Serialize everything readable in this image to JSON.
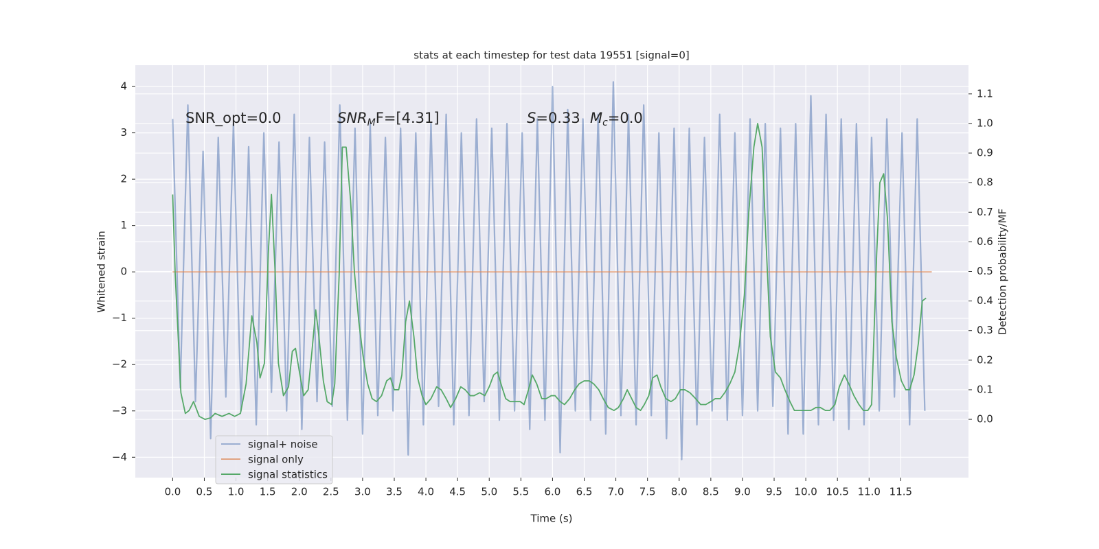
{
  "chart_data": {
    "type": "line",
    "title": "stats at each timestep for test data 19551 [signal=0]",
    "xlabel": "Time (s)",
    "ylabel": "Whitened strain",
    "y2label": "Detection probability/MF",
    "xlim": [
      -0.59,
      12.57
    ],
    "ylim": [
      -4.44,
      4.46
    ],
    "y2lim": [
      -0.197,
      1.197
    ],
    "xticks": [
      {
        "value": 0,
        "label": "0.0"
      },
      0.5,
      {
        "value": 1,
        "label": "1.0"
      },
      1.5,
      {
        "value": 2,
        "label": "2.0"
      },
      2.5,
      {
        "value": 3,
        "label": "3.0"
      },
      3.5,
      {
        "value": 4,
        "label": "4.0"
      },
      4.5,
      {
        "value": 5,
        "label": "5.0"
      },
      5.5,
      {
        "value": 6,
        "label": "6.0"
      },
      6.5,
      {
        "value": 7,
        "label": "7.0"
      },
      7.5,
      {
        "value": 8,
        "label": "8.0"
      },
      8.5,
      {
        "value": 9,
        "label": "9.0"
      },
      9.5,
      {
        "value": 10,
        "label": "10.0"
      },
      10.5,
      {
        "value": 11,
        "label": "11.0"
      },
      11.5
    ],
    "yticks": [
      {
        "value": -4,
        "label": "−4"
      },
      {
        "value": -3,
        "label": "−3"
      },
      {
        "value": -2,
        "label": "−2"
      },
      {
        "value": -1,
        "label": "−1"
      },
      0,
      1,
      2,
      3,
      4
    ],
    "y2ticks": [
      {
        "value": 0,
        "label": "0.0"
      },
      0.1,
      0.2,
      0.3,
      0.4,
      0.5,
      0.6,
      0.7,
      0.8,
      0.9,
      {
        "value": 1,
        "label": "1.0"
      },
      1.1
    ],
    "grid": true,
    "legend": "lower left",
    "annotations": [
      {
        "parts": [
          {
            "text": "SNR_opt=0.0",
            "style": "normal"
          }
        ]
      },
      {
        "parts": [
          {
            "text": "SNR",
            "style": "italic"
          },
          {
            "text": "M",
            "style": "sub"
          },
          {
            "text": "F=[4.31]",
            "style": "italic-head"
          }
        ]
      },
      {
        "parts": [
          {
            "text": "S",
            "style": "italic"
          },
          {
            "text": "=0.33",
            "style": "normal"
          }
        ]
      },
      {
        "parts": [
          {
            "text": "M",
            "style": "italic"
          },
          {
            "text": "c",
            "style": "sub"
          },
          {
            "text": "=0.0",
            "style": "normal"
          }
        ]
      }
    ],
    "series": [
      {
        "name": "signal+ noise",
        "color": "#4c72b0",
        "opacity": 0.5,
        "x": [
          0,
          0.12,
          0.24,
          0.36,
          0.48,
          0.6,
          0.72,
          0.84,
          0.96,
          1.08,
          1.2,
          1.32,
          1.44,
          1.56,
          1.68,
          1.8,
          1.92,
          2.04,
          2.16,
          2.28,
          2.4,
          2.52,
          2.64,
          2.76,
          2.88,
          3.0,
          3.12,
          3.24,
          3.36,
          3.48,
          3.6,
          3.72,
          3.84,
          3.96,
          4.08,
          4.2,
          4.32,
          4.44,
          4.56,
          4.68,
          4.8,
          4.92,
          5.04,
          5.16,
          5.28,
          5.4,
          5.52,
          5.64,
          5.76,
          5.88,
          6.0,
          6.12,
          6.24,
          6.36,
          6.48,
          6.6,
          6.72,
          6.84,
          6.96,
          7.08,
          7.2,
          7.32,
          7.44,
          7.56,
          7.68,
          7.8,
          7.92,
          8.04,
          8.16,
          8.28,
          8.4,
          8.52,
          8.64,
          8.76,
          8.88,
          9.0,
          9.12,
          9.24,
          9.36,
          9.48,
          9.6,
          9.72,
          9.84,
          9.96,
          10.08,
          10.2,
          10.32,
          10.44,
          10.56,
          10.68,
          10.8,
          10.92,
          11.04,
          11.16,
          11.28,
          11.4,
          11.52,
          11.64,
          11.76,
          11.88
        ],
        "values": [
          3.3,
          -2.5,
          3.6,
          -2.8,
          2.6,
          -3.6,
          2.9,
          -2.7,
          3.2,
          -3.0,
          2.7,
          -3.3,
          3.0,
          -2.6,
          2.8,
          -3.0,
          3.4,
          -3.4,
          2.9,
          -2.8,
          2.8,
          -2.9,
          3.6,
          -3.2,
          3.1,
          -3.5,
          3.2,
          -3.1,
          2.9,
          -3.0,
          3.1,
          -3.95,
          3.0,
          -3.3,
          3.2,
          -2.9,
          3.4,
          -3.3,
          3.0,
          -3.1,
          3.3,
          -2.8,
          3.1,
          -3.2,
          3.2,
          -3.0,
          3.0,
          -3.4,
          3.3,
          -3.2,
          4.0,
          -3.9,
          3.5,
          -3.0,
          3.3,
          -3.2,
          3.4,
          -3.5,
          4.1,
          -3.1,
          3.4,
          -3.3,
          3.6,
          -3.1,
          3.0,
          -3.6,
          3.1,
          -4.05,
          3.1,
          -3.3,
          2.9,
          -3.0,
          3.4,
          -3.2,
          3.0,
          -3.1,
          3.3,
          -3.0,
          3.2,
          -2.9,
          3.1,
          -3.5,
          3.2,
          -3.5,
          3.8,
          -3.3,
          3.4,
          -3.2,
          3.3,
          -3.4,
          3.2,
          -3.3,
          2.9,
          -3.0,
          3.3,
          -2.7,
          3.0,
          -3.3,
          3.3,
          -3.0
        ]
      },
      {
        "name": "signal only",
        "color": "#dd8452",
        "opacity": 0.7,
        "x": [
          0,
          11.99
        ],
        "values": [
          0,
          0
        ]
      },
      {
        "name": "signal statistics",
        "color": "#55a868",
        "opacity": 1,
        "axis": "y2",
        "x": [
          0,
          0.04,
          0.13,
          0.2,
          0.26,
          0.33,
          0.42,
          0.51,
          0.6,
          0.67,
          0.78,
          0.89,
          0.98,
          1.07,
          1.16,
          1.25,
          1.33,
          1.38,
          1.45,
          1.51,
          1.56,
          1.62,
          1.67,
          1.75,
          1.83,
          1.89,
          1.94,
          2.01,
          2.07,
          2.14,
          2.2,
          2.26,
          2.31,
          2.38,
          2.44,
          2.51,
          2.56,
          2.63,
          2.68,
          2.74,
          2.81,
          2.87,
          2.94,
          3.01,
          3.08,
          3.15,
          3.22,
          3.3,
          3.38,
          3.44,
          3.5,
          3.57,
          3.62,
          3.68,
          3.74,
          3.81,
          3.87,
          3.94,
          4.0,
          4.08,
          4.17,
          4.24,
          4.32,
          4.39,
          4.47,
          4.55,
          4.62,
          4.7,
          4.76,
          4.85,
          4.93,
          5.0,
          5.07,
          5.13,
          5.2,
          5.26,
          5.33,
          5.41,
          5.49,
          5.55,
          5.62,
          5.68,
          5.75,
          5.83,
          5.9,
          5.98,
          6.04,
          6.12,
          6.19,
          6.27,
          6.35,
          6.42,
          6.5,
          6.58,
          6.65,
          6.73,
          6.8,
          6.88,
          6.97,
          7.04,
          7.12,
          7.18,
          7.25,
          7.32,
          7.39,
          7.45,
          7.52,
          7.58,
          7.65,
          7.71,
          7.79,
          7.87,
          7.94,
          8.02,
          8.09,
          8.17,
          8.26,
          8.34,
          8.42,
          8.5,
          8.57,
          8.65,
          8.72,
          8.8,
          8.88,
          8.95,
          9.03,
          9.1,
          9.18,
          9.24,
          9.31,
          9.37,
          9.44,
          9.52,
          9.6,
          9.67,
          9.75,
          9.82,
          9.91,
          9.99,
          10.08,
          10.16,
          10.23,
          10.31,
          10.38,
          10.46,
          10.53,
          10.61,
          10.68,
          10.76,
          10.84,
          10.91,
          10.98,
          11.04,
          11.12,
          11.17,
          11.23,
          11.29,
          11.36,
          11.43,
          11.51,
          11.58,
          11.64,
          11.71,
          11.78,
          11.84,
          11.9
        ],
        "values": [
          0.76,
          0.49,
          0.09,
          0.02,
          0.03,
          0.06,
          0.01,
          0.0,
          0.005,
          0.02,
          0.01,
          0.02,
          0.01,
          0.02,
          0.12,
          0.35,
          0.26,
          0.14,
          0.19,
          0.56,
          0.76,
          0.49,
          0.19,
          0.08,
          0.11,
          0.23,
          0.24,
          0.15,
          0.08,
          0.1,
          0.23,
          0.37,
          0.28,
          0.13,
          0.06,
          0.05,
          0.12,
          0.49,
          0.92,
          0.92,
          0.74,
          0.5,
          0.33,
          0.21,
          0.12,
          0.07,
          0.06,
          0.08,
          0.13,
          0.14,
          0.1,
          0.1,
          0.15,
          0.33,
          0.4,
          0.28,
          0.14,
          0.08,
          0.05,
          0.07,
          0.11,
          0.1,
          0.07,
          0.04,
          0.07,
          0.11,
          0.1,
          0.08,
          0.08,
          0.09,
          0.08,
          0.11,
          0.15,
          0.16,
          0.11,
          0.07,
          0.06,
          0.06,
          0.06,
          0.05,
          0.1,
          0.15,
          0.12,
          0.07,
          0.07,
          0.08,
          0.08,
          0.06,
          0.05,
          0.07,
          0.1,
          0.12,
          0.13,
          0.13,
          0.12,
          0.1,
          0.07,
          0.04,
          0.03,
          0.04,
          0.07,
          0.1,
          0.07,
          0.04,
          0.03,
          0.05,
          0.08,
          0.14,
          0.15,
          0.11,
          0.07,
          0.06,
          0.07,
          0.1,
          0.1,
          0.09,
          0.07,
          0.05,
          0.05,
          0.06,
          0.07,
          0.07,
          0.09,
          0.12,
          0.16,
          0.25,
          0.42,
          0.7,
          0.92,
          1.0,
          0.92,
          0.61,
          0.28,
          0.16,
          0.14,
          0.1,
          0.06,
          0.03,
          0.03,
          0.03,
          0.03,
          0.04,
          0.04,
          0.03,
          0.03,
          0.05,
          0.11,
          0.15,
          0.12,
          0.08,
          0.05,
          0.03,
          0.03,
          0.05,
          0.56,
          0.8,
          0.83,
          0.68,
          0.33,
          0.21,
          0.13,
          0.1,
          0.1,
          0.15,
          0.26,
          0.4,
          0.41
        ]
      }
    ]
  }
}
